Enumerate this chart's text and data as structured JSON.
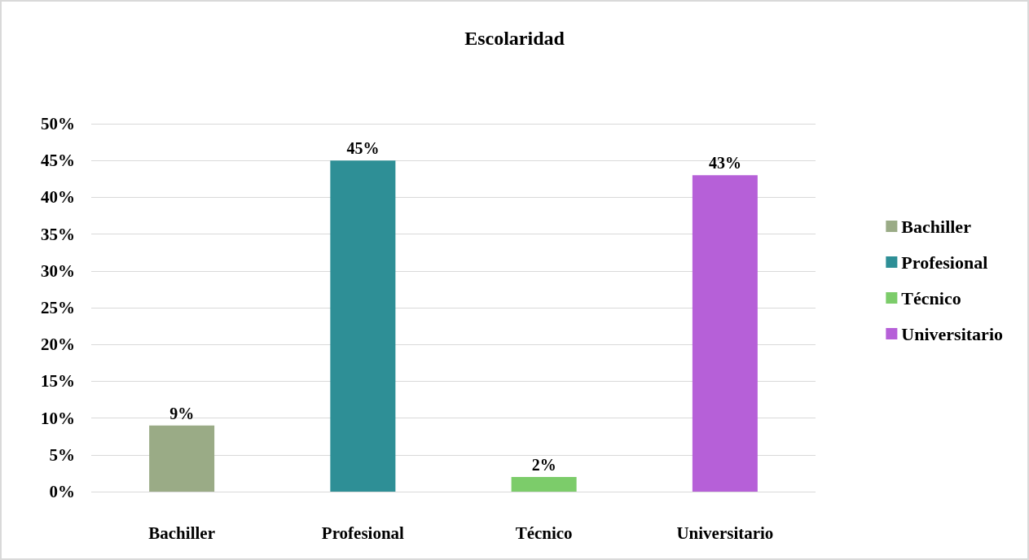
{
  "chart_data": {
    "type": "bar",
    "title": "Escolaridad",
    "categories": [
      "Bachiller",
      "Profesional",
      "Técnico",
      "Universitario"
    ],
    "stacked": true,
    "series": [
      {
        "name": "Bachiller",
        "color": "#9aab86",
        "values": [
          9,
          null,
          null,
          null
        ],
        "value_labels": [
          "9%",
          null,
          null,
          null
        ]
      },
      {
        "name": "Profesional",
        "color": "#2e8f96",
        "values": [
          null,
          45,
          null,
          null
        ],
        "value_labels": [
          null,
          "45%",
          null,
          null
        ]
      },
      {
        "name": "Técnico",
        "color": "#7ccc6a",
        "values": [
          null,
          null,
          2,
          null
        ],
        "value_labels": [
          null,
          null,
          "2%",
          null
        ]
      },
      {
        "name": "Universitario",
        "color": "#b660d8",
        "values": [
          null,
          null,
          null,
          43
        ],
        "value_labels": [
          null,
          null,
          null,
          "43%"
        ]
      }
    ],
    "ylim": [
      0,
      50
    ],
    "yticks": [
      {
        "value": 0,
        "label": "0%"
      },
      {
        "value": 5,
        "label": "5%"
      },
      {
        "value": 10,
        "label": "10%"
      },
      {
        "value": 15,
        "label": "15%"
      },
      {
        "value": 20,
        "label": "20%"
      },
      {
        "value": 25,
        "label": "25%"
      },
      {
        "value": 30,
        "label": "30%"
      },
      {
        "value": 35,
        "label": "35%"
      },
      {
        "value": 40,
        "label": "40%"
      },
      {
        "value": 45,
        "label": "45%"
      },
      {
        "value": 50,
        "label": "50%"
      }
    ],
    "grid": "y",
    "legend": "right"
  }
}
